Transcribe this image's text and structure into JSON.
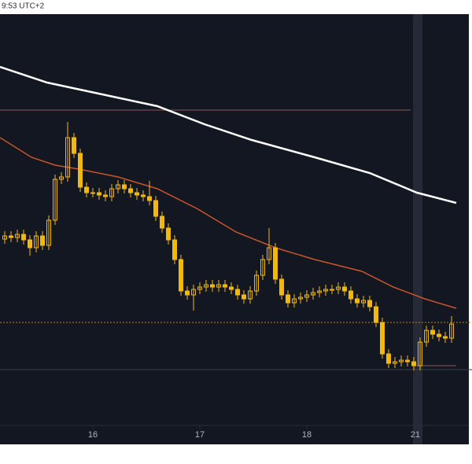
{
  "chart_data": {
    "type": "candlestick",
    "time_label": "9:53 UTC+2",
    "xlim": [
      -0.75,
      74.25
    ],
    "ylim": [
      0,
      522
    ],
    "xticks": [
      {
        "value": 14,
        "label": "16"
      },
      {
        "value": 31,
        "label": "17"
      },
      {
        "value": 48,
        "label": "18"
      },
      {
        "value": 65.25,
        "label": "21"
      }
    ],
    "candle_color": "#f0b90b",
    "open": [
      236,
      240,
      238,
      242,
      235,
      225,
      240,
      228,
      260,
      312,
      315,
      365,
      345,
      302,
      295,
      295,
      292,
      290,
      300,
      305,
      300,
      295,
      292,
      290,
      285,
      265,
      250,
      235,
      210,
      170,
      165,
      172,
      175,
      178,
      175,
      178,
      175,
      172,
      165,
      160,
      170,
      190,
      210,
      225,
      185,
      165,
      155,
      160,
      162,
      165,
      168,
      170,
      172,
      172,
      175,
      170,
      160,
      155,
      158,
      150,
      130,
      90,
      78,
      80,
      82,
      80,
      75,
      105,
      120,
      115,
      112,
      110
    ],
    "high": [
      246,
      246,
      248,
      248,
      241,
      246,
      246,
      266,
      318,
      321,
      385,
      371,
      351,
      308,
      301,
      301,
      298,
      306,
      311,
      311,
      306,
      301,
      298,
      310,
      291,
      271,
      256,
      241,
      216,
      176,
      178,
      181,
      184,
      184,
      184,
      184,
      181,
      178,
      171,
      176,
      196,
      216,
      250,
      231,
      191,
      171,
      166,
      168,
      171,
      174,
      176,
      178,
      178,
      181,
      181,
      176,
      166,
      164,
      164,
      156,
      136,
      96,
      86,
      88,
      88,
      86,
      111,
      126,
      126,
      121,
      118,
      138
    ],
    "low": [
      230,
      232,
      232,
      229,
      215,
      219,
      222,
      222,
      254,
      306,
      309,
      339,
      296,
      289,
      289,
      286,
      284,
      284,
      294,
      294,
      289,
      286,
      284,
      279,
      259,
      244,
      229,
      204,
      164,
      159,
      145,
      166,
      169,
      169,
      169,
      169,
      166,
      159,
      154,
      154,
      164,
      184,
      204,
      179,
      159,
      149,
      149,
      154,
      156,
      159,
      162,
      164,
      166,
      166,
      164,
      154,
      149,
      149,
      144,
      124,
      84,
      72,
      72,
      74,
      74,
      69,
      69,
      99,
      109,
      106,
      104,
      104
    ],
    "close": [
      240,
      238,
      242,
      235,
      225,
      240,
      228,
      260,
      312,
      315,
      365,
      345,
      302,
      295,
      295,
      292,
      290,
      300,
      305,
      300,
      295,
      292,
      290,
      285,
      265,
      250,
      235,
      210,
      170,
      165,
      172,
      175,
      178,
      175,
      178,
      175,
      172,
      165,
      160,
      170,
      190,
      210,
      225,
      185,
      165,
      155,
      160,
      162,
      165,
      168,
      170,
      172,
      172,
      175,
      170,
      160,
      155,
      158,
      150,
      130,
      90,
      78,
      80,
      82,
      80,
      75,
      105,
      120,
      115,
      112,
      110,
      128
    ],
    "overlays": [
      {
        "color": "#ffffff",
        "x": [
          -0.75,
          6.75,
          15.5,
          24.25,
          31.75,
          39.25,
          49.25,
          58,
          65.5,
          71.75
        ],
        "values": [
          455,
          435,
          420,
          405,
          382,
          362,
          340,
          320,
          295,
          282
        ]
      },
      {
        "color": "#c8552a",
        "x": [
          -0.75,
          4.25,
          8,
          11.75,
          18,
          24.25,
          30.5,
          36.75,
          43,
          49.25,
          56.75,
          61.75,
          66.75,
          71.75
        ],
        "values": [
          365,
          340,
          330,
          325,
          315,
          300,
          275,
          245,
          225,
          210,
          195,
          175,
          160,
          148
        ]
      }
    ],
    "levels": [
      {
        "value": 400,
        "color": "#8a5a5a",
        "dash": "none",
        "x": [
          -0.75,
          64.5
        ]
      },
      {
        "value": 130,
        "color": "#b8860b",
        "dash": "2 2",
        "x": [
          -0.75,
          74.25
        ]
      },
      {
        "value": 70,
        "color": "#3a3f4b",
        "dash": "none",
        "x": [
          -0.75,
          74.25
        ]
      },
      {
        "value": 75,
        "color": "#8a5a5a",
        "dash": "none",
        "x": [
          65.5,
          71.75
        ]
      }
    ]
  }
}
